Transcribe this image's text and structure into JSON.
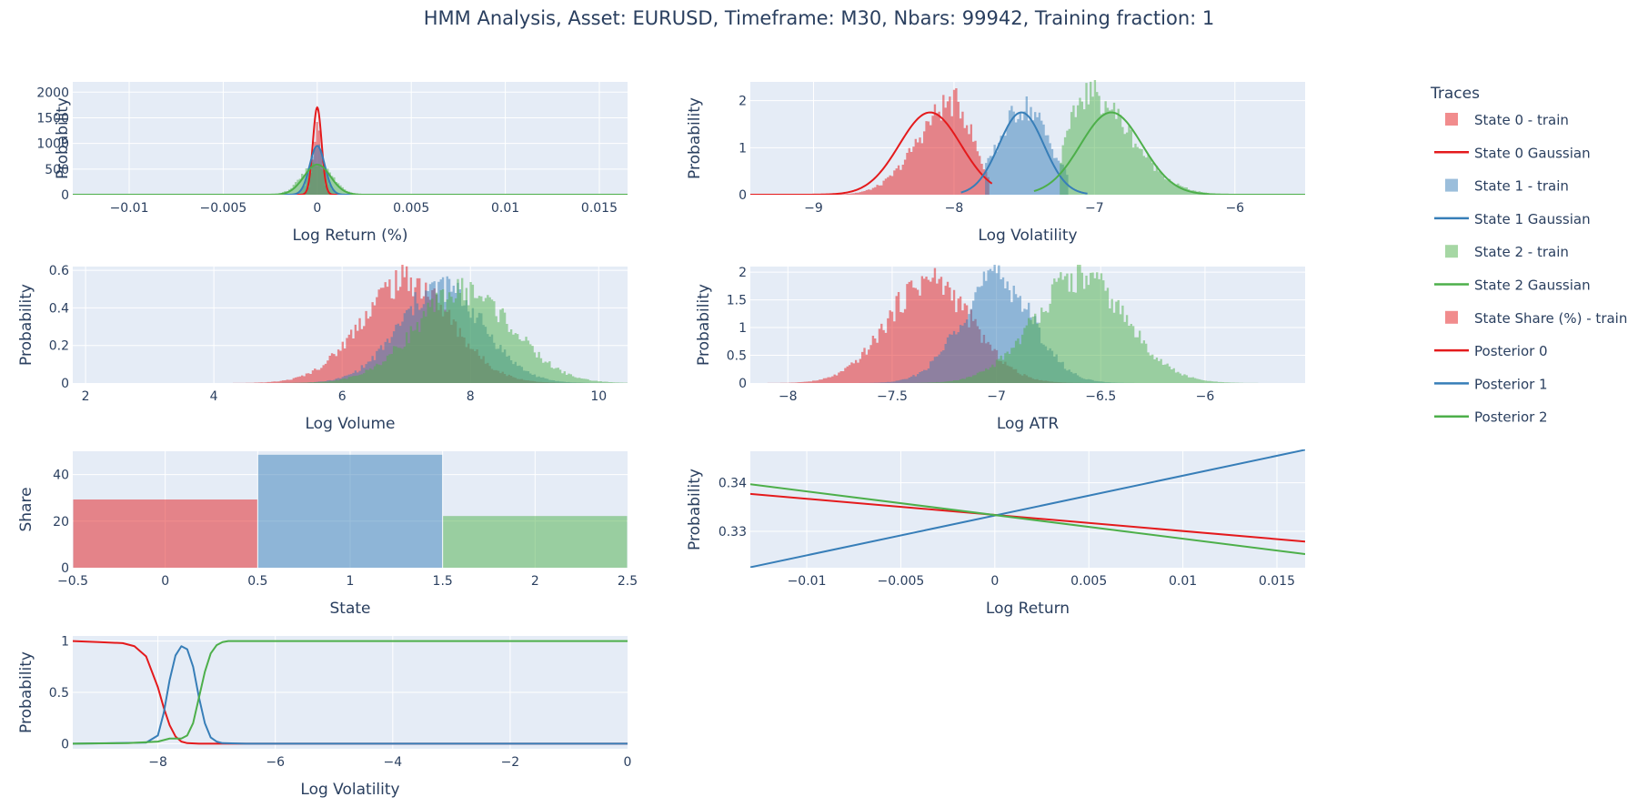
{
  "title": "HMM Analysis, Asset: EURUSD, Timeframe: M30, Nbars: 99942, Training fraction: 1",
  "colors": {
    "state0": "#e41a1c",
    "state1": "#377eb8",
    "state2": "#4daf4a",
    "plot_bg": "#e5ecf6",
    "grid": "#ffffff"
  },
  "legend": {
    "title": "Traces",
    "items": [
      {
        "label": "State 0 - train",
        "kind": "box",
        "color": "#e41a1c"
      },
      {
        "label": "State 0 Gaussian",
        "kind": "line",
        "color": "#e41a1c"
      },
      {
        "label": "State 1 - train",
        "kind": "box",
        "color": "#377eb8"
      },
      {
        "label": "State 1 Gaussian",
        "kind": "line",
        "color": "#377eb8"
      },
      {
        "label": "State 2 - train",
        "kind": "box",
        "color": "#4daf4a"
      },
      {
        "label": "State 2 Gaussian",
        "kind": "line",
        "color": "#4daf4a"
      },
      {
        "label": "State Share (%) - train",
        "kind": "box",
        "color": "#e41a1c"
      },
      {
        "label": "Posterior 0",
        "kind": "line",
        "color": "#e41a1c"
      },
      {
        "label": "Posterior 1",
        "kind": "line",
        "color": "#377eb8"
      },
      {
        "label": "Posterior 2",
        "kind": "line",
        "color": "#4daf4a"
      }
    ]
  },
  "chart_data": [
    {
      "id": "log-return-hist",
      "type": "histogram",
      "xlabel": "Log Return (%)",
      "ylabel": "Probability",
      "xlim": [
        -0.013,
        0.0165
      ],
      "ylim": [
        0,
        2200
      ],
      "xticks": [
        -0.01,
        -0.005,
        0,
        0.005,
        0.01,
        0.015
      ],
      "xtick_labels": [
        "−0.01",
        "−0.005",
        "0",
        "0.005",
        "0.01",
        "0.015"
      ],
      "yticks": [
        0,
        500,
        1000,
        1500,
        2000
      ],
      "ytick_labels": [
        "0",
        "500",
        "1000",
        "1500",
        "2000"
      ],
      "series": [
        {
          "name": "State 0 - train",
          "kind": "hist",
          "state": 0,
          "mu": 0.0,
          "sigma": 0.00022,
          "peak": 1450,
          "support": [
            -0.0028,
            0.0028
          ]
        },
        {
          "name": "State 1 - train",
          "kind": "hist",
          "state": 1,
          "mu": 0.0,
          "sigma": 0.0004,
          "peak": 900,
          "support": [
            -0.003,
            0.003
          ]
        },
        {
          "name": "State 2 - train",
          "kind": "hist",
          "state": 2,
          "mu": 0.0,
          "sigma": 0.0008,
          "peak": 600,
          "support": [
            -0.004,
            0.004
          ]
        },
        {
          "name": "State 0 Gaussian",
          "kind": "gauss",
          "state": 0,
          "mu": 0.0,
          "sigma": 0.00023,
          "peak": 1700,
          "support": [
            -0.003,
            0.003
          ]
        },
        {
          "name": "State 1 Gaussian",
          "kind": "gauss",
          "state": 1,
          "mu": 0.0,
          "sigma": 0.0004,
          "peak": 950,
          "support": [
            -0.003,
            0.003
          ]
        },
        {
          "name": "State 2 Gaussian",
          "kind": "gauss",
          "state": 2,
          "mu": 0.0,
          "sigma": 0.0007,
          "peak": 590,
          "support": [
            -0.013,
            0.0165
          ]
        }
      ]
    },
    {
      "id": "log-volatility-hist",
      "type": "histogram",
      "xlabel": "Log Volatility",
      "ylabel": "Probability",
      "xlim": [
        -9.45,
        -5.5
      ],
      "ylim": [
        0,
        2.4
      ],
      "xticks": [
        -9,
        -8,
        -7,
        -6
      ],
      "xtick_labels": [
        "−9",
        "−8",
        "−7",
        "−6"
      ],
      "yticks": [
        0,
        1,
        2
      ],
      "ytick_labels": [
        "0",
        "1",
        "2"
      ],
      "series": [
        {
          "name": "State 0 - train",
          "kind": "hist",
          "state": 0,
          "mu": -8.0,
          "sigma": 0.25,
          "skew": 1,
          "peak": 2.0,
          "support": [
            -9.45,
            -7.75
          ]
        },
        {
          "name": "State 1 - train",
          "kind": "hist",
          "state": 1,
          "mu": -7.5,
          "sigma": 0.18,
          "peak": 1.9,
          "support": [
            -7.78,
            -7.18
          ]
        },
        {
          "name": "State 2 - train",
          "kind": "hist",
          "state": 2,
          "mu": -7.05,
          "sigma": 0.3,
          "skew": -1,
          "peak": 2.2,
          "support": [
            -7.25,
            -5.5
          ]
        },
        {
          "name": "State 0 Gaussian",
          "kind": "gauss",
          "state": 0,
          "mu": -8.17,
          "sigma": 0.22,
          "peak": 1.75,
          "support": [
            -9.45,
            -7.73
          ]
        },
        {
          "name": "State 1 Gaussian",
          "kind": "gauss",
          "state": 1,
          "mu": -7.52,
          "sigma": 0.16,
          "peak": 1.75,
          "support": [
            -7.95,
            -7.05
          ]
        },
        {
          "name": "State 2 Gaussian",
          "kind": "gauss",
          "state": 2,
          "mu": -6.88,
          "sigma": 0.22,
          "peak": 1.75,
          "support": [
            -7.43,
            -5.5
          ]
        }
      ]
    },
    {
      "id": "log-volume-hist",
      "type": "histogram",
      "xlabel": "Log Volume",
      "ylabel": "Probability",
      "xlim": [
        1.8,
        10.45
      ],
      "ylim": [
        0,
        0.62
      ],
      "xticks": [
        2,
        4,
        6,
        8,
        10
      ],
      "xtick_labels": [
        "2",
        "4",
        "6",
        "8",
        "10"
      ],
      "yticks": [
        0,
        0.2,
        0.4,
        0.6
      ],
      "ytick_labels": [
        "0",
        "0.2",
        "0.4",
        "0.6"
      ],
      "series": [
        {
          "name": "State 0 - train",
          "kind": "hist",
          "state": 0,
          "mu": 7.0,
          "sigma": 0.7,
          "peak": 0.56,
          "support": [
            1.8,
            10.45
          ]
        },
        {
          "name": "State 1 - train",
          "kind": "hist",
          "state": 1,
          "mu": 7.55,
          "sigma": 0.65,
          "peak": 0.52,
          "support": [
            1.8,
            10.45
          ]
        },
        {
          "name": "State 2 - train",
          "kind": "hist",
          "state": 2,
          "mu": 7.9,
          "sigma": 0.75,
          "peak": 0.5,
          "support": [
            1.8,
            10.45
          ]
        }
      ]
    },
    {
      "id": "log-atr-hist",
      "type": "histogram",
      "xlabel": "Log ATR",
      "ylabel": "Probability",
      "xlim": [
        -8.18,
        -5.52
      ],
      "ylim": [
        0,
        2.1
      ],
      "xticks": [
        -8,
        -7.5,
        -7,
        -6.5,
        -6
      ],
      "xtick_labels": [
        "−8",
        "−7.5",
        "−7",
        "−6.5",
        "−6"
      ],
      "yticks": [
        0,
        0.5,
        1,
        1.5,
        2
      ],
      "ytick_labels": [
        "0",
        "0.5",
        "1",
        "1.5",
        "2"
      ],
      "series": [
        {
          "name": "State 0 - train",
          "kind": "hist",
          "state": 0,
          "mu": -7.32,
          "sigma": 0.2,
          "peak": 1.9,
          "support": [
            -8.18,
            -5.52
          ]
        },
        {
          "name": "State 1 - train",
          "kind": "hist",
          "state": 1,
          "mu": -7.0,
          "sigma": 0.17,
          "peak": 1.95,
          "support": [
            -8.18,
            -5.52
          ]
        },
        {
          "name": "State 2 - train",
          "kind": "hist",
          "state": 2,
          "mu": -6.6,
          "sigma": 0.22,
          "peak": 1.95,
          "support": [
            -8.18,
            -5.52
          ]
        }
      ]
    },
    {
      "id": "state-share-bar",
      "type": "bar",
      "xlabel": "State",
      "ylabel": "Share",
      "xlim": [
        -0.5,
        2.5
      ],
      "ylim": [
        0,
        50
      ],
      "xticks": [
        -0.5,
        0,
        0.5,
        1,
        1.5,
        2,
        2.5
      ],
      "xtick_labels": [
        "−0.5",
        "0",
        "0.5",
        "1",
        "1.5",
        "2",
        "2.5"
      ],
      "yticks": [
        0,
        20,
        40
      ],
      "ytick_labels": [
        "0",
        "20",
        "40"
      ],
      "categories": [
        0,
        1,
        2
      ],
      "values": [
        29.3,
        48.5,
        22.2
      ],
      "series_name": "State Share (%) - train"
    },
    {
      "id": "posterior-log-return",
      "type": "line",
      "xlabel": "Log Return",
      "ylabel": "Probability",
      "xlim": [
        -0.013,
        0.0165
      ],
      "ylim": [
        0.3225,
        0.3465
      ],
      "xticks": [
        -0.01,
        -0.005,
        0,
        0.005,
        0.01,
        0.015
      ],
      "xtick_labels": [
        "−0.01",
        "−0.005",
        "0",
        "0.005",
        "0.01",
        "0.015"
      ],
      "yticks": [
        0.33,
        0.34
      ],
      "ytick_labels": [
        "0.33",
        "0.34"
      ],
      "series": [
        {
          "name": "Posterior 0",
          "state": 0,
          "x": [
            -0.013,
            0.0165
          ],
          "y": [
            0.3377,
            0.3279
          ]
        },
        {
          "name": "Posterior 1",
          "state": 1,
          "x": [
            -0.013,
            0.0165
          ],
          "y": [
            0.3226,
            0.3468
          ]
        },
        {
          "name": "Posterior 2",
          "state": 2,
          "x": [
            -0.013,
            0.0165
          ],
          "y": [
            0.3397,
            0.3253
          ]
        }
      ]
    },
    {
      "id": "posterior-log-volatility",
      "type": "line",
      "xlabel": "Log Volatility",
      "ylabel": "Probability",
      "xlim": [
        -9.45,
        0
      ],
      "ylim": [
        -0.05,
        1.05
      ],
      "xticks": [
        -8,
        -6,
        -4,
        -2,
        0
      ],
      "xtick_labels": [
        "−8",
        "−6",
        "−4",
        "−2",
        "0"
      ],
      "yticks": [
        0,
        0.5,
        1
      ],
      "ytick_labels": [
        "0",
        "0.5",
        "1"
      ],
      "series": [
        {
          "name": "Posterior 0",
          "state": 0,
          "x": [
            -9.45,
            -9,
            -8.6,
            -8.4,
            -8.2,
            -8.0,
            -7.9,
            -7.8,
            -7.7,
            -7.6,
            -7.5,
            -7.3,
            -7.0,
            0
          ],
          "y": [
            1.0,
            0.99,
            0.98,
            0.95,
            0.85,
            0.55,
            0.35,
            0.18,
            0.07,
            0.02,
            0.005,
            0.0,
            0.0,
            0.0
          ]
        },
        {
          "name": "Posterior 1",
          "state": 1,
          "x": [
            -9.45,
            -8.2,
            -8.0,
            -7.9,
            -7.8,
            -7.7,
            -7.6,
            -7.5,
            -7.4,
            -7.3,
            -7.2,
            -7.1,
            -7.0,
            -6.9,
            -6.5,
            0
          ],
          "y": [
            0.0,
            0.01,
            0.08,
            0.3,
            0.62,
            0.86,
            0.95,
            0.92,
            0.75,
            0.45,
            0.2,
            0.06,
            0.02,
            0.005,
            0.0,
            0.0
          ]
        },
        {
          "name": "Posterior 2",
          "state": 2,
          "x": [
            -9.45,
            -8.5,
            -8.0,
            -7.8,
            -7.6,
            -7.5,
            -7.4,
            -7.3,
            -7.2,
            -7.1,
            -7.0,
            -6.9,
            -6.8,
            -6.6,
            -6.0,
            0
          ],
          "y": [
            0.0,
            0.005,
            0.02,
            0.05,
            0.05,
            0.08,
            0.2,
            0.45,
            0.7,
            0.88,
            0.96,
            0.99,
            1.0,
            1.0,
            1.0,
            1.0
          ]
        }
      ]
    }
  ]
}
